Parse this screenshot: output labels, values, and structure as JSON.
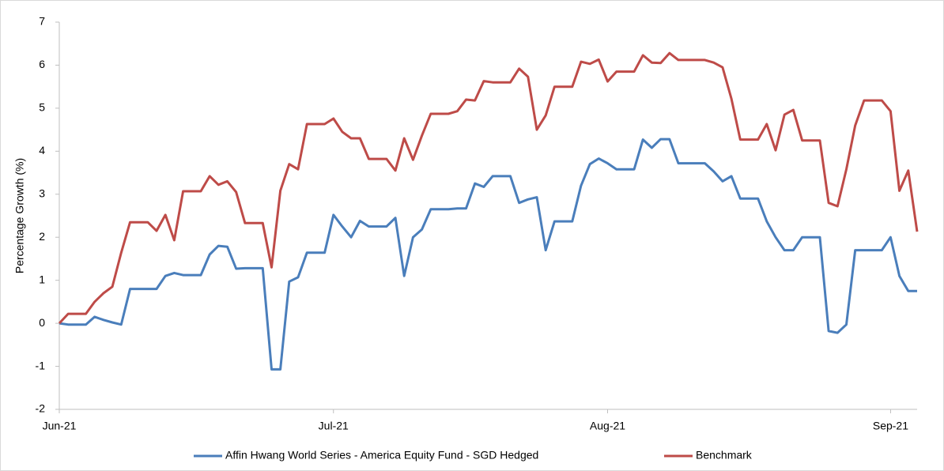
{
  "chart_data": {
    "type": "line",
    "y_label": "Percentage Growth (%)",
    "categories": [
      "Jun-21",
      null,
      null,
      null,
      null,
      null,
      null,
      null,
      null,
      null,
      null,
      null,
      null,
      null,
      null,
      null,
      null,
      null,
      null,
      null,
      null,
      null,
      null,
      null,
      null,
      null,
      null,
      null,
      null,
      null,
      null,
      "Jul-21",
      null,
      null,
      null,
      null,
      null,
      null,
      null,
      null,
      null,
      null,
      null,
      null,
      null,
      null,
      null,
      null,
      null,
      null,
      null,
      null,
      null,
      null,
      null,
      null,
      null,
      null,
      null,
      null,
      null,
      null,
      "Aug-21",
      null,
      null,
      null,
      null,
      null,
      null,
      null,
      null,
      null,
      null,
      null,
      null,
      null,
      null,
      null,
      null,
      null,
      null,
      null,
      null,
      null,
      null,
      null,
      null,
      null,
      null,
      null,
      null,
      null,
      null,
      null,
      "Sep-21",
      null,
      null,
      null
    ],
    "series": [
      {
        "name": "Affin Hwang World Series - America Equity Fund - SGD Hedged",
        "color": "#4a7ebb",
        "values": [
          0,
          -0.03,
          -0.03,
          -0.03,
          0.15,
          0.08,
          0.02,
          -0.03,
          0.8,
          0.8,
          0.8,
          0.8,
          1.1,
          1.17,
          1.12,
          1.12,
          1.12,
          1.6,
          1.8,
          1.78,
          1.27,
          1.28,
          1.28,
          1.28,
          -1.07,
          -1.07,
          0.97,
          1.07,
          1.64,
          1.64,
          1.64,
          2.52,
          2.25,
          2.0,
          2.38,
          2.25,
          2.25,
          2.25,
          2.45,
          1.1,
          2.0,
          2.18,
          2.65,
          2.65,
          2.65,
          2.67,
          2.67,
          3.25,
          3.17,
          3.42,
          3.42,
          3.42,
          2.8,
          2.88,
          2.93,
          1.7,
          2.37,
          2.37,
          2.37,
          3.2,
          3.7,
          3.83,
          3.72,
          3.58,
          3.58,
          3.58,
          4.27,
          4.08,
          4.28,
          4.28,
          3.72,
          3.72,
          3.72,
          3.72,
          3.53,
          3.3,
          3.42,
          2.9,
          2.9,
          2.9,
          2.37,
          2.0,
          1.7,
          1.7,
          2.0,
          2.0,
          2.0,
          -0.18,
          -0.22,
          -0.03,
          1.7,
          1.7,
          1.7,
          1.7,
          2.0,
          1.1,
          0.75,
          0.75
        ]
      },
      {
        "name": "Benchmark",
        "color": "#be4b48",
        "values": [
          0,
          0.22,
          0.22,
          0.22,
          0.5,
          0.7,
          0.85,
          1.64,
          2.35,
          2.35,
          2.35,
          2.15,
          2.52,
          1.93,
          3.07,
          3.07,
          3.07,
          3.42,
          3.22,
          3.3,
          3.05,
          2.33,
          2.33,
          2.33,
          1.3,
          3.08,
          3.7,
          3.58,
          4.63,
          4.63,
          4.63,
          4.76,
          4.45,
          4.3,
          4.3,
          3.82,
          3.82,
          3.82,
          3.55,
          4.3,
          3.8,
          4.36,
          4.87,
          4.87,
          4.87,
          4.93,
          5.2,
          5.18,
          5.63,
          5.6,
          5.6,
          5.6,
          5.92,
          5.73,
          4.5,
          4.83,
          5.5,
          5.5,
          5.5,
          6.08,
          6.03,
          6.13,
          5.62,
          5.85,
          5.85,
          5.85,
          6.23,
          6.06,
          6.05,
          6.28,
          6.12,
          6.12,
          6.12,
          6.12,
          6.06,
          5.95,
          5.22,
          4.27,
          4.27,
          4.27,
          4.63,
          4.02,
          4.85,
          4.96,
          4.25,
          4.25,
          4.25,
          2.8,
          2.72,
          3.58,
          4.6,
          5.18,
          5.18,
          5.18,
          4.93,
          3.08,
          3.55,
          2.13
        ]
      }
    ],
    "ylim": [
      -2,
      7
    ],
    "yticks": [
      -2,
      -1,
      0,
      1,
      2,
      3,
      4,
      5,
      6,
      7
    ],
    "grid": false,
    "legend": "bottom"
  }
}
